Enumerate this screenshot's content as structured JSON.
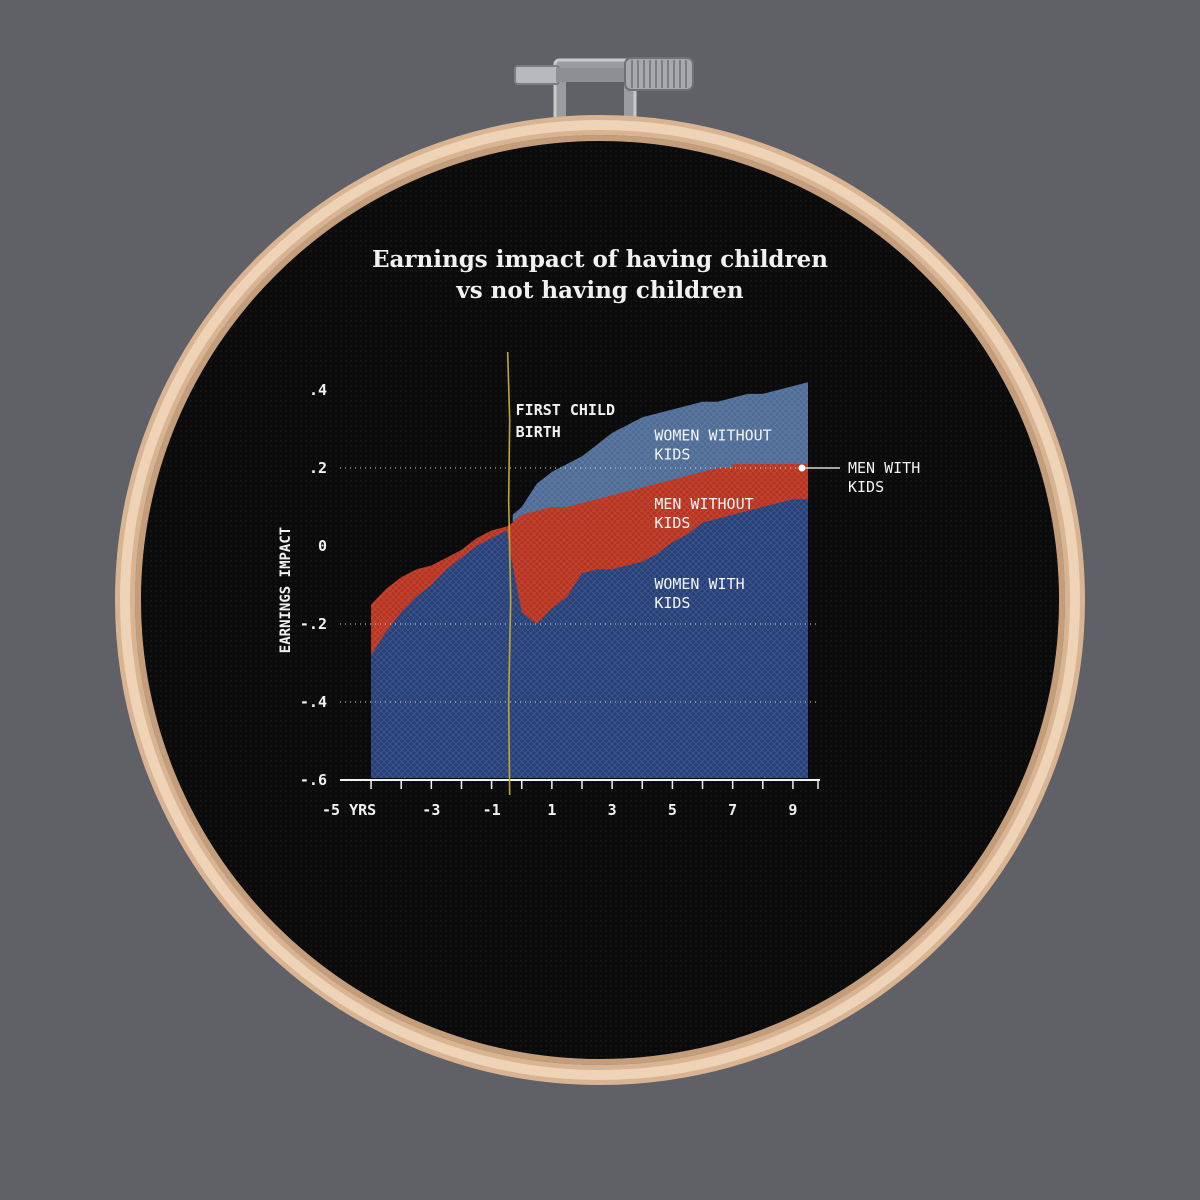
{
  "chart_data": {
    "type": "area",
    "title": "Earnings impact of having children\nvs not having children",
    "ylabel": "EARNINGS IMPACT",
    "xlabel": "",
    "x_ticks": [
      {
        "x": -5,
        "label": "-5 YRS"
      },
      {
        "x": -3,
        "label": "-3"
      },
      {
        "x": -1,
        "label": "-1"
      },
      {
        "x": 1,
        "label": "1"
      },
      {
        "x": 3,
        "label": "3"
      },
      {
        "x": 5,
        "label": "5"
      },
      {
        "x": 7,
        "label": "7"
      },
      {
        "x": 9,
        "label": "9"
      }
    ],
    "y_ticks": [
      {
        "y": 0.4,
        "label": ".4"
      },
      {
        "y": 0.2,
        "label": ".2"
      },
      {
        "y": 0,
        "label": "0"
      },
      {
        "y": -0.2,
        "label": "-.2"
      },
      {
        "y": -0.4,
        "label": "-.4"
      },
      {
        "y": -0.6,
        "label": "-.6"
      }
    ],
    "xlim": [
      -5.5,
      9.5
    ],
    "ylim": [
      -0.6,
      0.4
    ],
    "grid_lines_y": [
      0.2,
      -0.2,
      -0.4
    ],
    "event_marker": {
      "x": -0.5,
      "label": "FIRST CHILD\nBIRTH"
    },
    "series": [
      {
        "name": "WOMEN WITHOUT KIDS",
        "color": "#4c6b95",
        "x": [
          -0.3,
          0,
          0.5,
          1,
          1.5,
          2,
          2.5,
          3,
          3.5,
          4,
          4.5,
          5,
          5.5,
          6,
          6.5,
          7,
          7.5,
          8,
          8.5,
          9,
          9.5
        ],
        "y": [
          0.08,
          0.1,
          0.16,
          0.19,
          0.21,
          0.23,
          0.26,
          0.29,
          0.31,
          0.33,
          0.34,
          0.35,
          0.36,
          0.37,
          0.37,
          0.38,
          0.39,
          0.39,
          0.4,
          0.41,
          0.42
        ]
      },
      {
        "name": "MEN WITH KIDS",
        "color": "#b7331f",
        "x": [
          7,
          7.5,
          8,
          8.5,
          9,
          9.5
        ],
        "y": [
          0.21,
          0.21,
          0.21,
          0.21,
          0.21,
          0.21
        ]
      },
      {
        "name": "MEN WITHOUT KIDS",
        "color": "#b7331f",
        "x": [
          -5,
          -4.5,
          -4,
          -3.5,
          -3,
          -2.5,
          -2,
          -1.5,
          -1,
          -0.5,
          -0.3,
          0,
          0.5,
          1,
          1.5,
          2,
          2.5,
          3,
          3.5,
          4,
          4.5,
          5,
          5.5,
          6,
          6.5,
          7,
          7.5,
          8,
          8.5,
          9,
          9.5
        ],
        "y": [
          -0.15,
          -0.11,
          -0.08,
          -0.06,
          -0.05,
          -0.03,
          -0.01,
          0.02,
          0.04,
          0.05,
          0.06,
          0.08,
          0.09,
          0.1,
          0.1,
          0.11,
          0.12,
          0.13,
          0.14,
          0.15,
          0.16,
          0.17,
          0.18,
          0.19,
          0.2,
          0.2,
          0.21,
          0.21,
          0.21,
          0.21,
          0.21
        ]
      },
      {
        "name": "WOMEN WITH KIDS",
        "color": "#263f78",
        "x": [
          -5,
          -4.5,
          -4,
          -3.5,
          -3,
          -2.5,
          -2,
          -1.5,
          -1,
          -0.5,
          -0.3,
          0,
          0.5,
          1,
          1.5,
          2,
          2.5,
          3,
          3.5,
          4,
          4.5,
          5,
          5.5,
          6,
          6.5,
          7,
          7.5,
          8,
          8.5,
          9,
          9.5
        ],
        "y": [
          -0.28,
          -0.22,
          -0.17,
          -0.13,
          -0.1,
          -0.06,
          -0.03,
          0.0,
          0.02,
          0.04,
          -0.05,
          -0.17,
          -0.2,
          -0.16,
          -0.13,
          -0.07,
          -0.06,
          -0.06,
          -0.05,
          -0.04,
          -0.02,
          0.01,
          0.03,
          0.06,
          0.07,
          0.08,
          0.09,
          0.1,
          0.11,
          0.12,
          0.12
        ]
      }
    ],
    "annotations": [
      {
        "series": "WOMEN WITHOUT KIDS",
        "text": "WOMEN WITHOUT\nKIDS",
        "x": 4.4,
        "y": 0.27
      },
      {
        "series": "MEN WITHOUT KIDS",
        "text": "MEN WITHOUT\nKIDS",
        "x": 4.4,
        "y": 0.095
      },
      {
        "series": "WOMEN WITH KIDS",
        "text": "WOMEN WITH\nKIDS",
        "x": 4.4,
        "y": -0.11
      },
      {
        "series": "MEN WITH KIDS",
        "text": "MEN WITH\nKIDS",
        "x": 9.3,
        "y": 0.2,
        "callout": true
      }
    ],
    "colors": {
      "background": "#5f6167",
      "fabric": "#0b0b0c",
      "hoop": "#e9c9a8",
      "axis": "#f1f1f1",
      "marker": "#c2a735"
    }
  }
}
